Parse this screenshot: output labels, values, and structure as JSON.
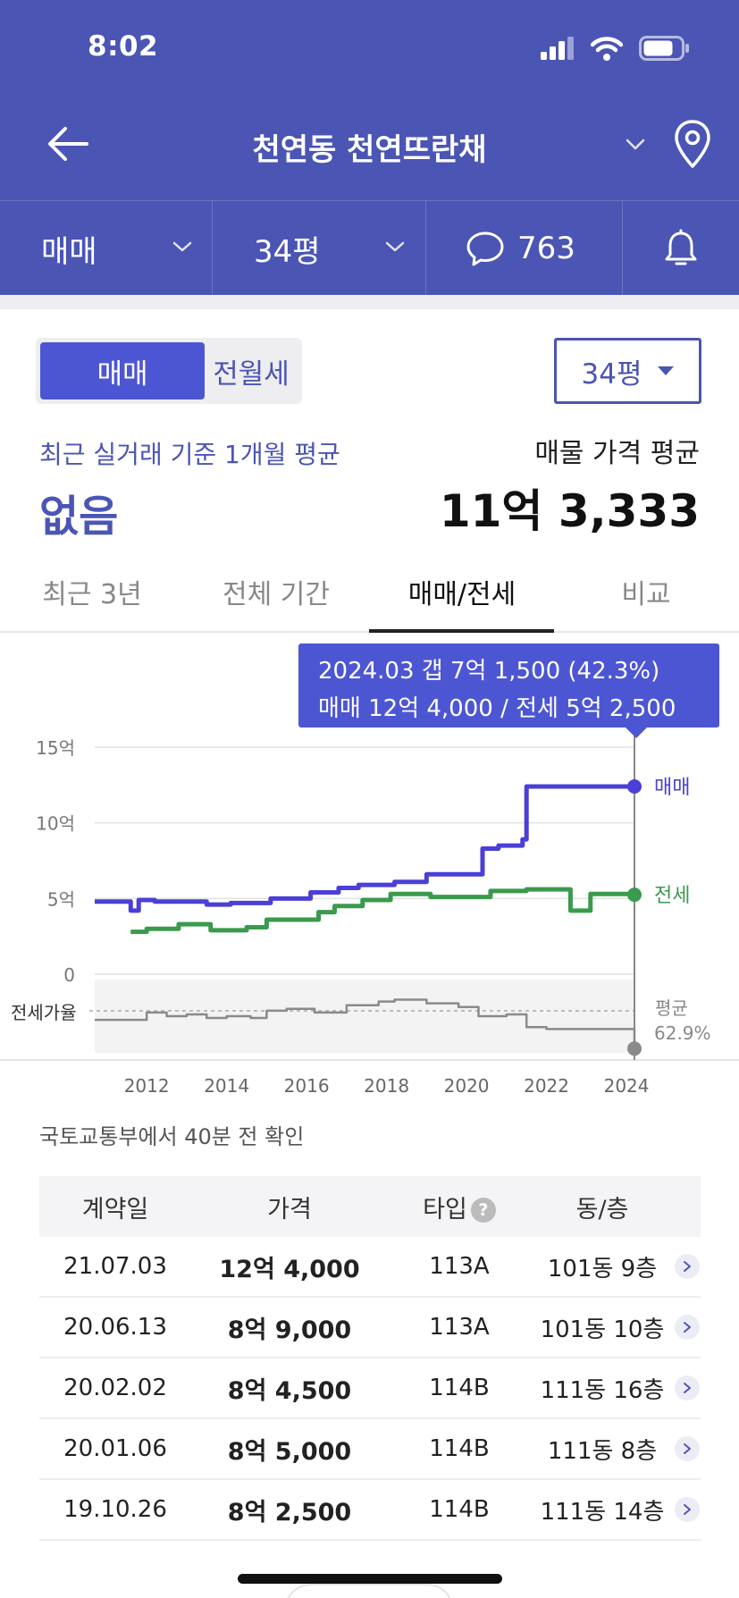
{
  "status": {
    "time": "8:02"
  },
  "nav": {
    "title": "천연동 천연뜨란채"
  },
  "filters": {
    "trade": "매매",
    "size": "34평",
    "comments": "763"
  },
  "toggle": {
    "active": "매매",
    "inactive": "전월세"
  },
  "size_select": "34평",
  "summary": {
    "recent_label": "최근 실거래 기준 1개월 평균",
    "recent_value": "없음",
    "avg_label": "매물 가격 평균",
    "avg_value": "11억 3,333"
  },
  "tabs": [
    "최근 3년",
    "전체 기간",
    "매매/전세",
    "비교"
  ],
  "tooltip": {
    "line1": "2024.03 갭 7억 1,500 (42.3%)",
    "line2": "매매 12억 4,000 / 전세 5억 2,500"
  },
  "chart_data": {
    "type": "line",
    "x_ticks": [
      "2012",
      "2014",
      "2016",
      "2018",
      "2020",
      "2022",
      "2024"
    ],
    "y_ticks": [
      "15억",
      "10억",
      "5억",
      "0"
    ],
    "xlim": [
      2010.7,
      2024.2
    ],
    "ylim": [
      0,
      15
    ],
    "series": [
      {
        "name": "매매",
        "color": "#4a3fd6",
        "x": [
          2010.7,
          2011.4,
          2011.6,
          2011.8,
          2012.2,
          2013.0,
          2013.5,
          2014.1,
          2015.1,
          2015.6,
          2016.1,
          2016.8,
          2017.3,
          2018.2,
          2019.0,
          2020.0,
          2020.4,
          2020.8,
          2021.4,
          2021.5,
          2022.0,
          2023.0,
          2024.2
        ],
        "values": [
          4.8,
          4.8,
          4.2,
          4.9,
          4.8,
          4.8,
          4.6,
          4.7,
          5.0,
          5.0,
          5.4,
          5.7,
          5.9,
          6.1,
          6.6,
          6.6,
          8.3,
          8.5,
          8.9,
          12.4,
          12.4,
          12.4,
          12.4
        ]
      },
      {
        "name": "전세",
        "color": "#3a9a4d",
        "x": [
          2011.6,
          2012.0,
          2012.3,
          2012.8,
          2013.6,
          2014.1,
          2014.5,
          2015.0,
          2015.9,
          2016.3,
          2016.7,
          2017.4,
          2018.1,
          2019.1,
          2020.1,
          2020.6,
          2021.2,
          2021.5,
          2022.0,
          2022.6,
          2023.1,
          2024.2
        ],
        "values": [
          2.8,
          3.0,
          3.0,
          3.3,
          2.9,
          2.9,
          3.1,
          3.6,
          3.6,
          4.1,
          4.5,
          4.9,
          5.3,
          5.1,
          5.1,
          5.5,
          5.5,
          5.6,
          5.6,
          4.2,
          5.3,
          5.25
        ]
      },
      {
        "name": "전세가율",
        "color": "#8a8a8a",
        "x": [
          2010.7,
          2011.6,
          2012.0,
          2012.5,
          2013.0,
          2013.5,
          2014.0,
          2014.6,
          2015.0,
          2015.5,
          2016.2,
          2017.0,
          2017.8,
          2018.2,
          2019.0,
          2019.8,
          2020.3,
          2021.0,
          2021.5,
          2022.0,
          2023.0,
          2024.2
        ],
        "values": [
          58,
          58,
          62,
          60,
          61,
          59,
          60,
          59,
          63,
          64,
          62,
          66,
          68,
          69,
          67,
          65,
          60,
          61,
          54,
          53,
          53,
          42.3
        ]
      }
    ],
    "legend": [
      "매매",
      "전세"
    ],
    "ratio_label": "전세가율",
    "ratio_avg_label": "평균",
    "ratio_avg_value": "62.9%",
    "ratio_avg": 62.9,
    "ratio_range": [
      40,
      80
    ],
    "marker_x": 2024.2
  },
  "source_note": "국토교통부에서 40분 전 확인",
  "table": {
    "headers": [
      "계약일",
      "가격",
      "타입",
      "동/층"
    ],
    "rows": [
      {
        "date": "21.07.03",
        "price": "12억 4,000",
        "type": "113A",
        "unit": "101동 9층"
      },
      {
        "date": "20.06.13",
        "price": "8억 9,000",
        "type": "113A",
        "unit": "101동 10층"
      },
      {
        "date": "20.02.02",
        "price": "8억 4,500",
        "type": "114B",
        "unit": "111동 16층"
      },
      {
        "date": "20.01.06",
        "price": "8억 5,000",
        "type": "114B",
        "unit": "111동 8층"
      },
      {
        "date": "19.10.26",
        "price": "8억 2,500",
        "type": "114B",
        "unit": "111동 14층"
      }
    ]
  }
}
